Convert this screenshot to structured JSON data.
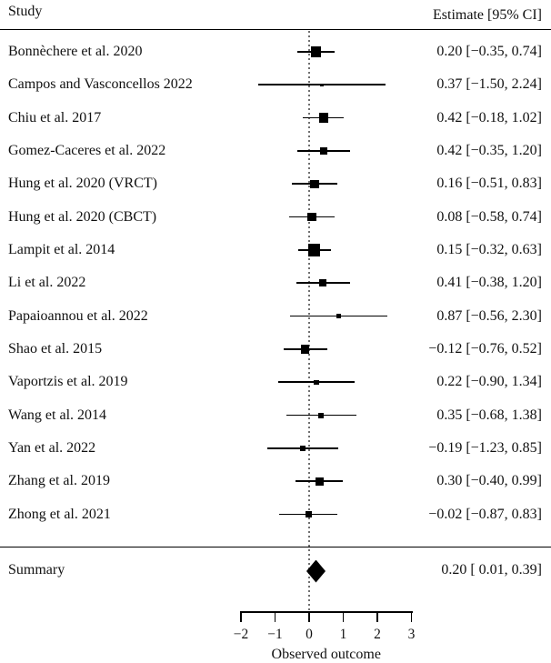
{
  "header": {
    "study_col": "Study",
    "estimate_col": "Estimate [95% CI]"
  },
  "colors": {
    "marker": "#000000",
    "ci_line": "#000000",
    "rule": "#000000",
    "reference_line": "#6f6f6f",
    "text": "#111111",
    "background": "#ffffff"
  },
  "chart_data": {
    "type": "scatter",
    "variant": "forest-plot",
    "title": "",
    "xlabel": "Observed outcome",
    "xlim": [
      -2,
      3
    ],
    "x_ticks": [
      -2,
      -1,
      0,
      1,
      2,
      3
    ],
    "x_tick_labels": [
      "−2",
      "−1",
      "0",
      "1",
      "2",
      "3"
    ],
    "reference_line_x": 0,
    "grid": false,
    "legend": null,
    "studies": [
      {
        "label": "Bonnèchere et al. 2020",
        "estimate": 0.2,
        "ci_lower": -0.35,
        "ci_upper": 0.74,
        "text": "0.20 [−0.35, 0.74]"
      },
      {
        "label": "Campos and Vasconcellos 2022",
        "estimate": 0.37,
        "ci_lower": -1.5,
        "ci_upper": 2.24,
        "text": "0.37 [−1.50, 2.24]"
      },
      {
        "label": "Chiu et al. 2017",
        "estimate": 0.42,
        "ci_lower": -0.18,
        "ci_upper": 1.02,
        "text": "0.42 [−0.18, 1.02]"
      },
      {
        "label": "Gomez-Caceres et al. 2022",
        "estimate": 0.42,
        "ci_lower": -0.35,
        "ci_upper": 1.2,
        "text": "0.42 [−0.35, 1.20]"
      },
      {
        "label": "Hung et al. 2020 (VRCT)",
        "estimate": 0.16,
        "ci_lower": -0.51,
        "ci_upper": 0.83,
        "text": "0.16 [−0.51, 0.83]"
      },
      {
        "label": "Hung et al. 2020 (CBCT)",
        "estimate": 0.08,
        "ci_lower": -0.58,
        "ci_upper": 0.74,
        "text": "0.08 [−0.58, 0.74]"
      },
      {
        "label": "Lampit et al. 2014",
        "estimate": 0.15,
        "ci_lower": -0.32,
        "ci_upper": 0.63,
        "text": "0.15 [−0.32, 0.63]"
      },
      {
        "label": "Li et al. 2022",
        "estimate": 0.41,
        "ci_lower": -0.38,
        "ci_upper": 1.2,
        "text": "0.41 [−0.38, 1.20]"
      },
      {
        "label": "Papaioannou et al. 2022",
        "estimate": 0.87,
        "ci_lower": -0.56,
        "ci_upper": 2.3,
        "text": "0.87 [−0.56, 2.30]"
      },
      {
        "label": "Shao et al. 2015",
        "estimate": -0.12,
        "ci_lower": -0.76,
        "ci_upper": 0.52,
        "text": "−0.12 [−0.76, 0.52]"
      },
      {
        "label": "Vaportzis et al. 2019",
        "estimate": 0.22,
        "ci_lower": -0.9,
        "ci_upper": 1.34,
        "text": "0.22 [−0.90, 1.34]"
      },
      {
        "label": "Wang et al. 2014",
        "estimate": 0.35,
        "ci_lower": -0.68,
        "ci_upper": 1.38,
        "text": "0.35 [−0.68, 1.38]"
      },
      {
        "label": "Yan et al. 2022",
        "estimate": -0.19,
        "ci_lower": -1.23,
        "ci_upper": 0.85,
        "text": "−0.19 [−1.23, 0.85]"
      },
      {
        "label": "Zhang et al. 2019",
        "estimate": 0.3,
        "ci_lower": -0.4,
        "ci_upper": 0.99,
        "text": "0.30 [−0.40, 0.99]"
      },
      {
        "label": "Zhong et al. 2021",
        "estimate": -0.02,
        "ci_lower": -0.87,
        "ci_upper": 0.83,
        "text": "−0.02 [−0.87, 0.83]"
      }
    ],
    "summary": {
      "label": "Summary",
      "estimate": 0.2,
      "ci_lower": 0.01,
      "ci_upper": 0.39,
      "text": "0.20 [ 0.01, 0.39]"
    }
  }
}
